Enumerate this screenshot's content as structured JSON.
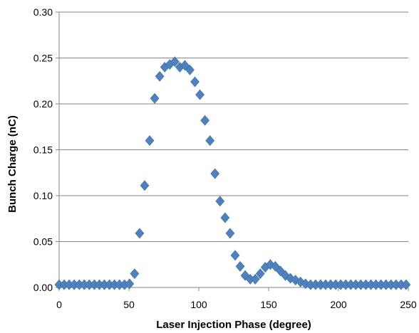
{
  "chart_data": {
    "type": "scatter",
    "title": "",
    "xlabel": "Laser Injection Phase (degree)",
    "ylabel": "Bunch Charge (nC)",
    "xlim": [
      0,
      250
    ],
    "ylim": [
      0,
      0.3
    ],
    "x_ticks": [
      "0",
      "50",
      "100",
      "150",
      "200",
      "250"
    ],
    "y_ticks": [
      "0.00",
      "0.05",
      "0.10",
      "0.15",
      "0.20",
      "0.25",
      "0.30"
    ],
    "grid": "horizontal",
    "legend": "none",
    "marker": "diamond",
    "color": "#4F81BD",
    "series": [
      {
        "x": [
          0,
          3.6,
          7.2,
          10.8,
          14.4,
          18,
          21.6,
          25.2,
          28.8,
          32.4,
          36,
          39.6,
          43.2,
          46.8,
          50.4,
          54,
          57.6,
          61.2,
          64.8,
          68.4,
          72,
          75.6,
          79.2,
          82.8,
          86.4,
          90,
          93.6,
          97.2,
          100.8,
          104.4,
          108,
          111.6,
          115.2,
          118.8,
          122.4,
          126,
          129.6,
          133.2,
          136.8,
          140.4,
          144,
          147.6,
          151.2,
          154.8,
          158.4,
          162,
          165.6,
          169.2,
          172.8,
          176.4,
          180,
          183.6,
          187.2,
          190.8,
          194.4,
          198,
          201.6,
          205.2,
          208.8,
          212.4,
          216,
          219.6,
          223.2,
          226.8,
          230.4,
          234,
          237.6,
          241.2,
          244.8,
          248.4
        ],
        "y": [
          0.003,
          0.003,
          0.003,
          0.003,
          0.003,
          0.003,
          0.003,
          0.003,
          0.003,
          0.003,
          0.003,
          0.003,
          0.003,
          0.003,
          0.004,
          0.015,
          0.059,
          0.111,
          0.16,
          0.206,
          0.23,
          0.24,
          0.243,
          0.246,
          0.24,
          0.242,
          0.237,
          0.224,
          0.21,
          0.182,
          0.16,
          0.124,
          0.094,
          0.076,
          0.059,
          0.035,
          0.023,
          0.013,
          0.009,
          0.009,
          0.015,
          0.022,
          0.025,
          0.023,
          0.018,
          0.013,
          0.01,
          0.008,
          0.006,
          0.004,
          0.003,
          0.003,
          0.003,
          0.003,
          0.003,
          0.003,
          0.003,
          0.003,
          0.003,
          0.003,
          0.003,
          0.003,
          0.003,
          0.003,
          0.003,
          0.003,
          0.003,
          0.003,
          0.003,
          0.003
        ]
      }
    ]
  }
}
